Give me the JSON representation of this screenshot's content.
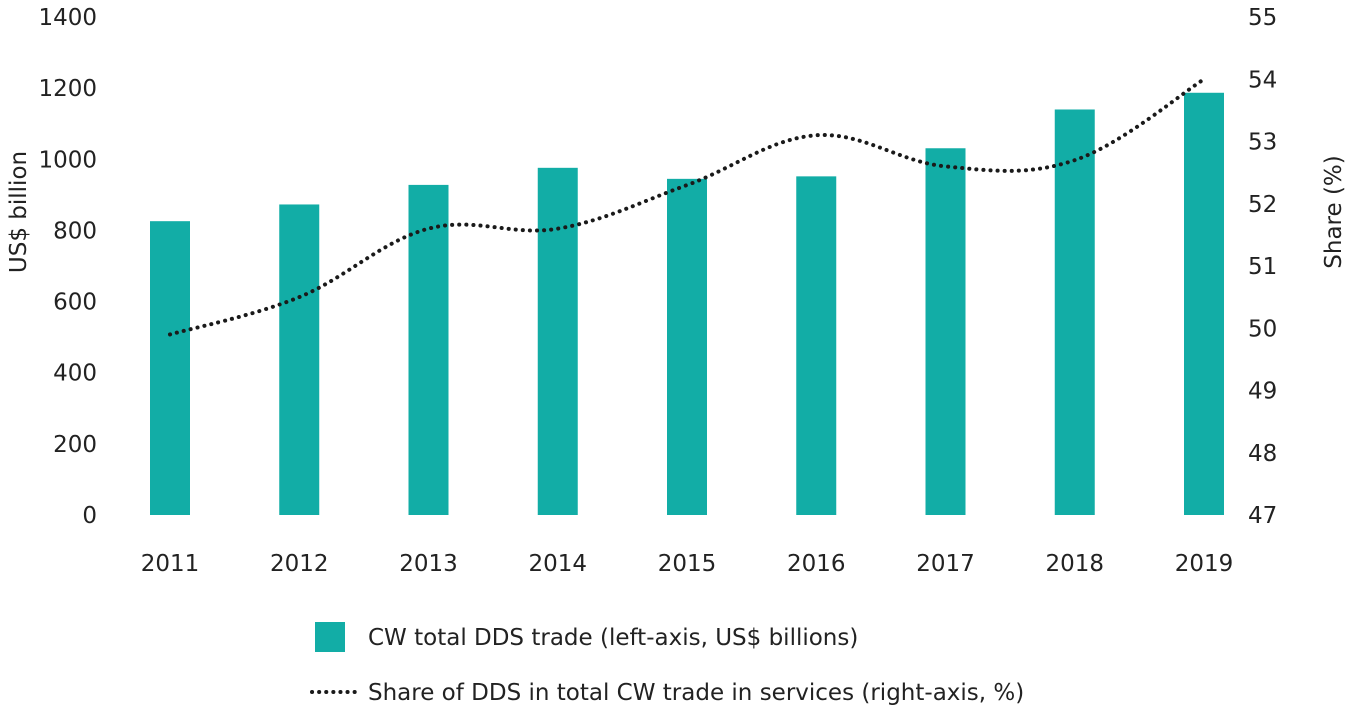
{
  "chart_data": {
    "type": "bar",
    "title": "",
    "categories": [
      "2011",
      "2012",
      "2013",
      "2014",
      "2015",
      "2016",
      "2017",
      "2018",
      "2019"
    ],
    "left_axis": {
      "label": "US$ billion",
      "ylim": [
        0,
        1400
      ],
      "ticks": [
        "0",
        "200",
        "400",
        "600",
        "800",
        "1000",
        "1200",
        "1400"
      ]
    },
    "right_axis": {
      "label": "Share (%)",
      "ylim": [
        47,
        55
      ],
      "ticks": [
        "47",
        "48",
        "49",
        "50",
        "51",
        "52",
        "53",
        "54",
        "55"
      ]
    },
    "series": [
      {
        "name": "CW total DDS trade (left-axis, US$ billions)",
        "type": "bar",
        "axis": "left",
        "color": "#12ADA6",
        "values": [
          826,
          873,
          928,
          976,
          945,
          952,
          1031,
          1140,
          1187
        ]
      },
      {
        "name": "Share of DDS in total CW trade in services (right-axis, %)",
        "type": "line",
        "style": "dotted",
        "axis": "right",
        "color": "#1a1a1a",
        "values": [
          49.9,
          50.5,
          51.6,
          51.6,
          52.3,
          53.1,
          52.6,
          52.7,
          54.0
        ]
      }
    ],
    "grid": false,
    "legend_position": "bottom"
  }
}
